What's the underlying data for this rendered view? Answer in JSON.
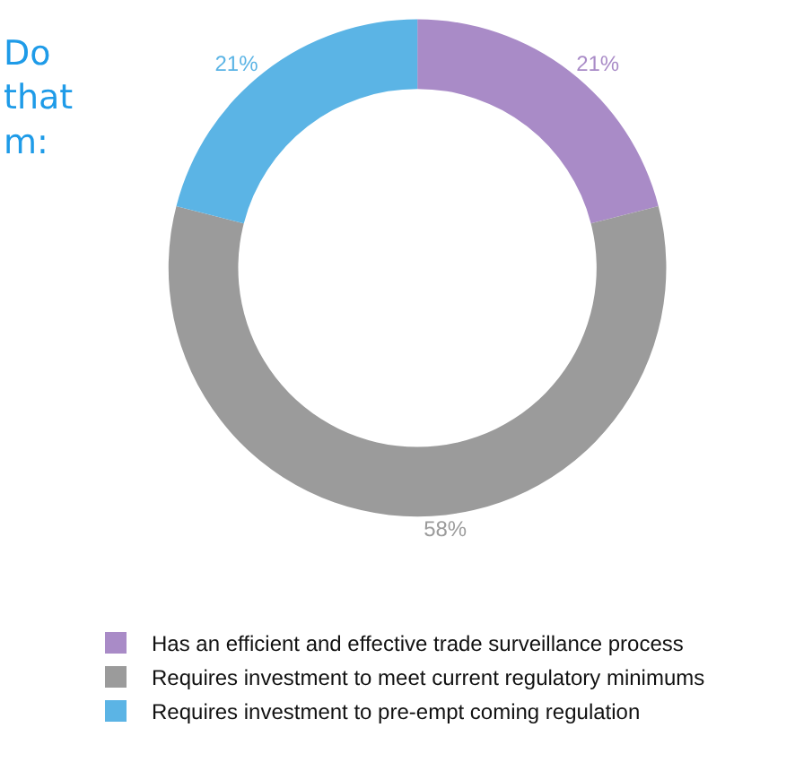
{
  "chart_data": {
    "type": "donut",
    "title": "Do\nthat\nm:",
    "categories": [
      "Has an efficient and effective trade surveillance process",
      "Requires investment to meet current regulatory minimums",
      "Requires investment to pre-empt coming regulation"
    ],
    "values": [
      21,
      58,
      21
    ],
    "colors": [
      "#a98bc7",
      "#9b9b9b",
      "#5bb4e5"
    ],
    "value_labels": [
      "21%",
      "58%",
      "21%"
    ],
    "legend": "bottom"
  }
}
